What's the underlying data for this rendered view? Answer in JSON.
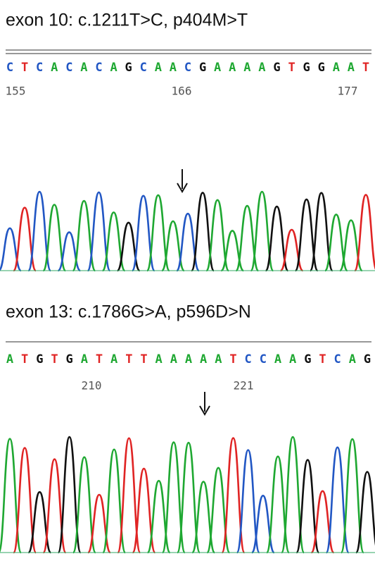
{
  "panels": [
    {
      "title": "exon 10: c.1211T>C, p404M>T",
      "bases": [
        "C",
        "T",
        "C",
        "A",
        "C",
        "A",
        "C",
        "A",
        "G",
        "C",
        "A",
        "A",
        "C",
        "G",
        "A",
        "A",
        "A",
        "A",
        "G",
        "T",
        "G",
        "G",
        "A",
        "A",
        "T"
      ],
      "positions": [
        155,
        166,
        177
      ]
    },
    {
      "title": "exon 13: c.1786G>A, p596D>N",
      "bases": [
        "A",
        "T",
        "G",
        "T",
        "G",
        "A",
        "T",
        "A",
        "T",
        "T",
        "A",
        "A",
        "A",
        "A",
        "A",
        "T",
        "C",
        "C",
        "A",
        "A",
        "G",
        "T",
        "C",
        "A",
        "G"
      ],
      "positions": [
        210,
        221
      ]
    }
  ],
  "base_colors": {
    "A": "#1fa832",
    "C": "#2257c4",
    "G": "#111111",
    "T": "#e02424"
  }
}
